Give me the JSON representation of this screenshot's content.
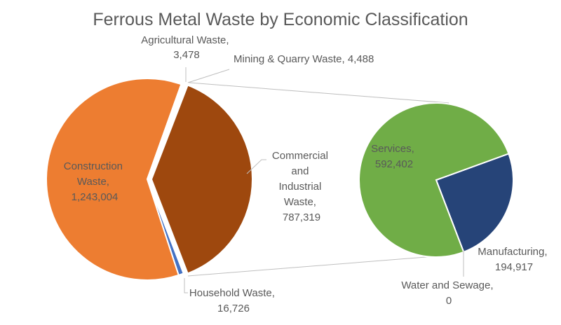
{
  "chart_data": {
    "type": "pie-of-pie",
    "title": "Ferrous Metal Waste by Economic Classification",
    "primary": [
      {
        "label": "Commercial and Industrial Waste",
        "value": 787319,
        "color": "#9E480E",
        "exploded": true
      },
      {
        "label": "Household Waste",
        "value": 16726,
        "color": "#4472C4"
      },
      {
        "label": "Construction Waste",
        "value": 1243004,
        "color": "#ED7D31"
      },
      {
        "label": "Agricultural Waste",
        "value": 3478,
        "color": "#A5A5A5"
      },
      {
        "label": "Mining & Quarry Waste",
        "value": 4488,
        "color": "#FFC000"
      }
    ],
    "secondary": [
      {
        "label": "Manufacturing",
        "value": 194917,
        "color": "#264478"
      },
      {
        "label": "Water and Sewage",
        "value": 0,
        "color": "#43682B"
      },
      {
        "label": "Services",
        "value": 592402,
        "color": "#70AD47"
      }
    ],
    "labels": {
      "commercial": [
        "Commercial",
        "and",
        "Industrial",
        "Waste,",
        "787,319"
      ],
      "household": [
        "Household Waste,",
        "16,726"
      ],
      "construction": [
        "Construction",
        "Waste,",
        "1,243,004"
      ],
      "agricultural": [
        "Agricultural Waste,",
        "3,478"
      ],
      "mining": [
        "Mining & Quarry Waste, 4,488"
      ],
      "manufacturing": [
        "Manufacturing,",
        "194,917"
      ],
      "water": [
        "Water and Sewage,",
        "0"
      ],
      "services": [
        "Services,",
        "592,402"
      ]
    }
  }
}
